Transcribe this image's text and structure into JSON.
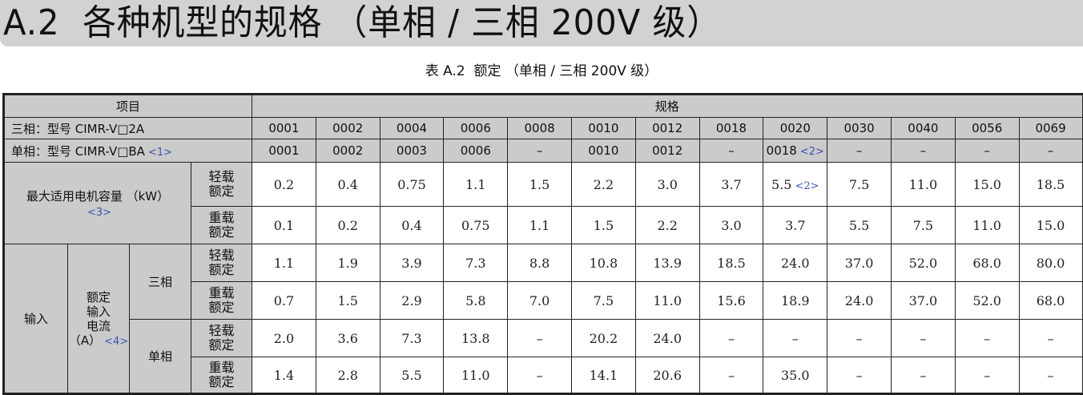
{
  "page": {
    "title": "A.2  各种机型的规格 （单相 / 三相 200V 级）",
    "caption": "表 A.2  额定 （单相 / 三相 200V 级）"
  },
  "colors": {
    "header_bg": "#cbcbcb",
    "title_band": "#d2d2d2",
    "note": "#3a55b0"
  },
  "table": {
    "header": {
      "item": "项目",
      "spec": "规格"
    },
    "model_3ph": {
      "label": "三相：型号 CIMR-V□2A",
      "values": [
        "0001",
        "0002",
        "0004",
        "0006",
        "0008",
        "0010",
        "0012",
        "0018",
        "0020",
        "0030",
        "0040",
        "0056",
        "0069"
      ]
    },
    "model_1ph": {
      "label": "单相：型号 CIMR-V□BA",
      "note": "<1>",
      "values": [
        "0001",
        "0002",
        "0003",
        "0006",
        "–",
        "0010",
        "0012",
        "–",
        "0018",
        "–",
        "–",
        "–",
        "–"
      ],
      "value_notes": {
        "8": "<2>"
      }
    },
    "motor": {
      "label": "最大适用电机容量 （kW）",
      "note": "<3>",
      "light": {
        "label": "轻载\n额定",
        "values": [
          "0.2",
          "0.4",
          "0.75",
          "1.1",
          "1.5",
          "2.2",
          "3.0",
          "3.7",
          "5.5",
          "7.5",
          "11.0",
          "15.0",
          "18.5"
        ],
        "value_notes": {
          "8": "<2>"
        }
      },
      "heavy": {
        "label": "重载\n额定",
        "values": [
          "0.1",
          "0.2",
          "0.4",
          "0.75",
          "1.1",
          "1.5",
          "2.2",
          "3.0",
          "3.7",
          "5.5",
          "7.5",
          "11.0",
          "15.0"
        ]
      }
    },
    "input": {
      "label": "输入",
      "sub_label": "额定\n输入\n电流\n（A）",
      "note": "<4>",
      "three_phase": {
        "label": "三相",
        "light": {
          "label": "轻载\n额定",
          "values": [
            "1.1",
            "1.9",
            "3.9",
            "7.3",
            "8.8",
            "10.8",
            "13.9",
            "18.5",
            "24.0",
            "37.0",
            "52.0",
            "68.0",
            "80.0"
          ]
        },
        "heavy": {
          "label": "重载\n额定",
          "values": [
            "0.7",
            "1.5",
            "2.9",
            "5.8",
            "7.0",
            "7.5",
            "11.0",
            "15.6",
            "18.9",
            "24.0",
            "37.0",
            "52.0",
            "68.0"
          ]
        }
      },
      "single_phase": {
        "label": "单相",
        "light": {
          "label": "轻载\n额定",
          "values": [
            "2.0",
            "3.6",
            "7.3",
            "13.8",
            "–",
            "20.2",
            "24.0",
            "–",
            "–",
            "–",
            "–",
            "–",
            "–"
          ]
        },
        "heavy": {
          "label": "重载\n额定",
          "values": [
            "1.4",
            "2.8",
            "5.5",
            "11.0",
            "–",
            "14.1",
            "20.6",
            "–",
            "35.0",
            "–",
            "–",
            "–",
            "–"
          ]
        }
      }
    }
  }
}
